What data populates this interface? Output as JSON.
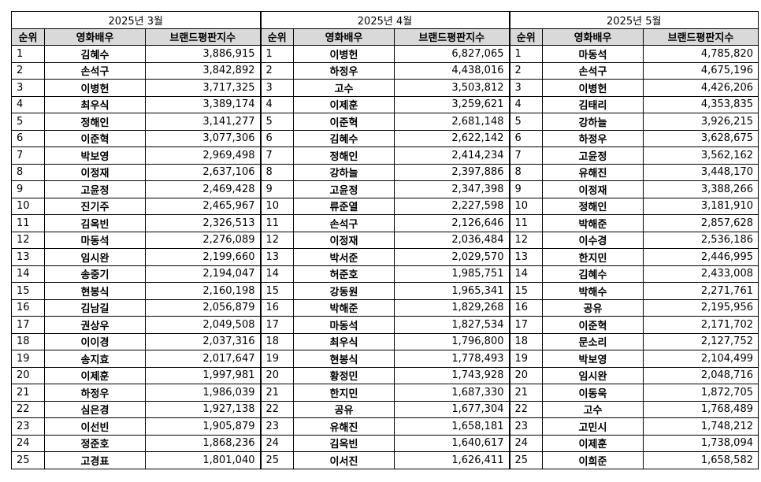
{
  "table": {
    "col_rank": "순위",
    "col_actor": "영화배우",
    "col_index": "브랜드평판지수",
    "months": [
      {
        "title": "2025년 3월",
        "rows": [
          {
            "rank": "1",
            "name": "김혜수",
            "value": "3,886,915"
          },
          {
            "rank": "2",
            "name": "손석구",
            "value": "3,842,892"
          },
          {
            "rank": "3",
            "name": "이병헌",
            "value": "3,717,325"
          },
          {
            "rank": "4",
            "name": "최우식",
            "value": "3,389,174"
          },
          {
            "rank": "5",
            "name": "정해인",
            "value": "3,141,277"
          },
          {
            "rank": "6",
            "name": "이준혁",
            "value": "3,077,306"
          },
          {
            "rank": "7",
            "name": "박보영",
            "value": "2,969,498"
          },
          {
            "rank": "8",
            "name": "이정재",
            "value": "2,637,106"
          },
          {
            "rank": "9",
            "name": "고윤정",
            "value": "2,469,428"
          },
          {
            "rank": "10",
            "name": "진기주",
            "value": "2,465,967"
          },
          {
            "rank": "11",
            "name": "김옥빈",
            "value": "2,326,513"
          },
          {
            "rank": "12",
            "name": "마동석",
            "value": "2,276,089"
          },
          {
            "rank": "13",
            "name": "임시완",
            "value": "2,199,660"
          },
          {
            "rank": "14",
            "name": "송중기",
            "value": "2,194,047"
          },
          {
            "rank": "15",
            "name": "현봉식",
            "value": "2,160,198"
          },
          {
            "rank": "16",
            "name": "김남길",
            "value": "2,056,879"
          },
          {
            "rank": "17",
            "name": "권상우",
            "value": "2,049,508"
          },
          {
            "rank": "18",
            "name": "이이경",
            "value": "2,037,316"
          },
          {
            "rank": "19",
            "name": "송지효",
            "value": "2,017,647"
          },
          {
            "rank": "20",
            "name": "이제훈",
            "value": "1,997,981"
          },
          {
            "rank": "21",
            "name": "하정우",
            "value": "1,986,039"
          },
          {
            "rank": "22",
            "name": "심은경",
            "value": "1,927,138"
          },
          {
            "rank": "23",
            "name": "이선빈",
            "value": "1,905,879"
          },
          {
            "rank": "24",
            "name": "정준호",
            "value": "1,868,236"
          },
          {
            "rank": "25",
            "name": "고경표",
            "value": "1,801,040"
          }
        ]
      },
      {
        "title": "2025년 4월",
        "rows": [
          {
            "rank": "1",
            "name": "이병헌",
            "value": "6,827,065"
          },
          {
            "rank": "2",
            "name": "하정우",
            "value": "4,438,016"
          },
          {
            "rank": "3",
            "name": "고수",
            "value": "3,503,812"
          },
          {
            "rank": "4",
            "name": "이제훈",
            "value": "3,259,621"
          },
          {
            "rank": "5",
            "name": "이준혁",
            "value": "2,681,148"
          },
          {
            "rank": "6",
            "name": "김혜수",
            "value": "2,622,142"
          },
          {
            "rank": "7",
            "name": "정해인",
            "value": "2,414,234"
          },
          {
            "rank": "8",
            "name": "강하늘",
            "value": "2,397,886"
          },
          {
            "rank": "9",
            "name": "고윤정",
            "value": "2,347,398"
          },
          {
            "rank": "10",
            "name": "류준열",
            "value": "2,227,598"
          },
          {
            "rank": "11",
            "name": "손석구",
            "value": "2,126,646"
          },
          {
            "rank": "12",
            "name": "이정재",
            "value": "2,036,484"
          },
          {
            "rank": "13",
            "name": "박서준",
            "value": "2,029,570"
          },
          {
            "rank": "14",
            "name": "허준호",
            "value": "1,985,751"
          },
          {
            "rank": "15",
            "name": "강동원",
            "value": "1,965,341"
          },
          {
            "rank": "16",
            "name": "박해준",
            "value": "1,829,268"
          },
          {
            "rank": "17",
            "name": "마동석",
            "value": "1,827,534"
          },
          {
            "rank": "18",
            "name": "최우식",
            "value": "1,796,800"
          },
          {
            "rank": "19",
            "name": "현봉식",
            "value": "1,778,493"
          },
          {
            "rank": "20",
            "name": "황정민",
            "value": "1,743,928"
          },
          {
            "rank": "21",
            "name": "한지민",
            "value": "1,687,330"
          },
          {
            "rank": "22",
            "name": "공유",
            "value": "1,677,304"
          },
          {
            "rank": "23",
            "name": "유해진",
            "value": "1,658,181"
          },
          {
            "rank": "24",
            "name": "김옥빈",
            "value": "1,640,617"
          },
          {
            "rank": "25",
            "name": "이서진",
            "value": "1,626,411"
          }
        ]
      },
      {
        "title": "2025년 5월",
        "rows": [
          {
            "rank": "1",
            "name": "마동석",
            "value": "4,785,820"
          },
          {
            "rank": "2",
            "name": "손석구",
            "value": "4,675,196"
          },
          {
            "rank": "3",
            "name": "이병헌",
            "value": "4,426,206"
          },
          {
            "rank": "4",
            "name": "김태리",
            "value": "4,353,835"
          },
          {
            "rank": "5",
            "name": "강하늘",
            "value": "3,926,215"
          },
          {
            "rank": "6",
            "name": "하정우",
            "value": "3,628,675"
          },
          {
            "rank": "7",
            "name": "고윤정",
            "value": "3,562,162"
          },
          {
            "rank": "8",
            "name": "유해진",
            "value": "3,448,170"
          },
          {
            "rank": "9",
            "name": "이정재",
            "value": "3,388,266"
          },
          {
            "rank": "10",
            "name": "정해인",
            "value": "3,181,910"
          },
          {
            "rank": "11",
            "name": "박해준",
            "value": "2,857,628"
          },
          {
            "rank": "12",
            "name": "이수경",
            "value": "2,536,186"
          },
          {
            "rank": "13",
            "name": "한지민",
            "value": "2,446,995"
          },
          {
            "rank": "14",
            "name": "김혜수",
            "value": "2,433,008"
          },
          {
            "rank": "15",
            "name": "박해수",
            "value": "2,271,761"
          },
          {
            "rank": "16",
            "name": "공유",
            "value": "2,195,956"
          },
          {
            "rank": "17",
            "name": "이준혁",
            "value": "2,171,702"
          },
          {
            "rank": "18",
            "name": "문소리",
            "value": "2,127,752"
          },
          {
            "rank": "19",
            "name": "박보영",
            "value": "2,104,499"
          },
          {
            "rank": "20",
            "name": "임시완",
            "value": "2,048,716"
          },
          {
            "rank": "21",
            "name": "이동욱",
            "value": "1,872,705"
          },
          {
            "rank": "22",
            "name": "고수",
            "value": "1,768,489"
          },
          {
            "rank": "23",
            "name": "고민시",
            "value": "1,748,212"
          },
          {
            "rank": "24",
            "name": "이제훈",
            "value": "1,738,094"
          },
          {
            "rank": "25",
            "name": "이희준",
            "value": "1,658,582"
          }
        ]
      }
    ]
  }
}
